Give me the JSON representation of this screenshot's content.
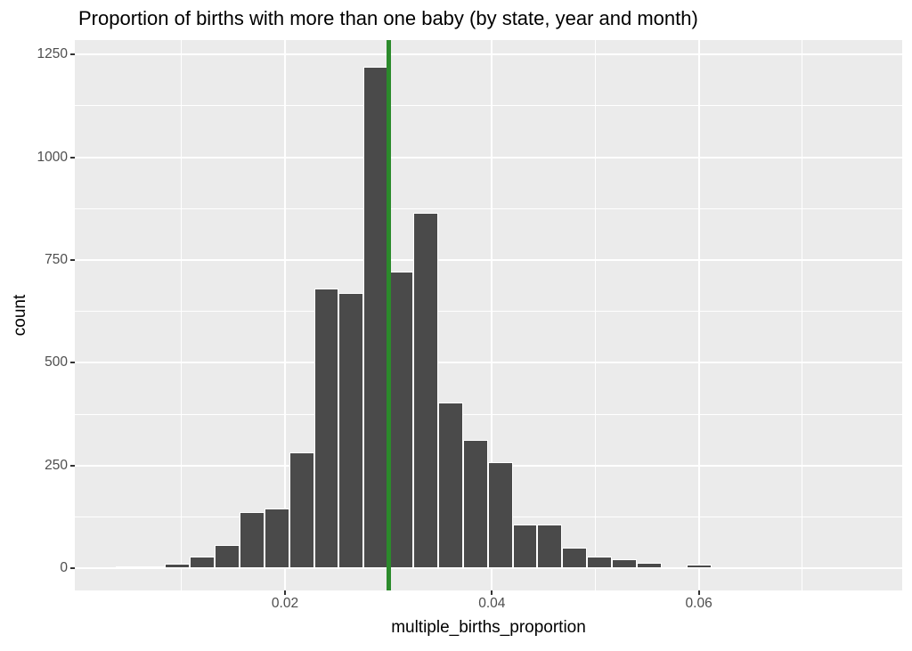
{
  "title": "Proportion of births with more than one baby (by state, year and month)",
  "chart_data": {
    "type": "bar",
    "subtype": "histogram",
    "title": "Proportion of births with more than one baby (by state, year and month)",
    "xlabel": "multiple_births_proportion",
    "ylabel": "count",
    "bin_width": 0.0024,
    "bin_left_edges": [
      0.0036,
      0.006,
      0.0084,
      0.0108,
      0.0132,
      0.0156,
      0.018,
      0.0204,
      0.0228,
      0.0252,
      0.0276,
      0.03,
      0.0324,
      0.0348,
      0.0372,
      0.0396,
      0.042,
      0.0444,
      0.0468,
      0.0492,
      0.0516,
      0.054,
      0.0564,
      0.0588
    ],
    "counts": [
      5,
      4,
      10,
      29,
      57,
      136,
      145,
      281,
      680,
      669,
      1221,
      721,
      865,
      404,
      313,
      258,
      106,
      106,
      50,
      28,
      21,
      13,
      2,
      8
    ],
    "vline_x": 0.03,
    "x_tick_values": [
      0.02,
      0.04,
      0.06
    ],
    "x_tick_labels": [
      "0.02",
      "0.04",
      "0.06"
    ],
    "x_minor_gridlines": [
      0.01,
      0.03,
      0.05,
      0.07
    ],
    "y_tick_values": [
      0,
      250,
      500,
      750,
      1000,
      1250
    ],
    "y_tick_labels": [
      "0",
      "250",
      "500",
      "750",
      "1000",
      "1250"
    ],
    "y_minor_gridlines": [
      125,
      375,
      625,
      875,
      1125
    ],
    "xlim": [
      -0.00032,
      0.07966
    ],
    "ylim": [
      -54,
      1285
    ],
    "grid": true,
    "legend_position": "none",
    "colors": {
      "bar_fill": "#4a4a4a",
      "bar_stroke": "#ffffff",
      "panel_bg": "#ebebeb",
      "gridline": "#ffffff",
      "vline": "#2b8a2b",
      "tick_text": "#4d4d4d",
      "axis_title_text": "#000000",
      "title_text": "#000000",
      "tick_mark": "#333333"
    }
  }
}
